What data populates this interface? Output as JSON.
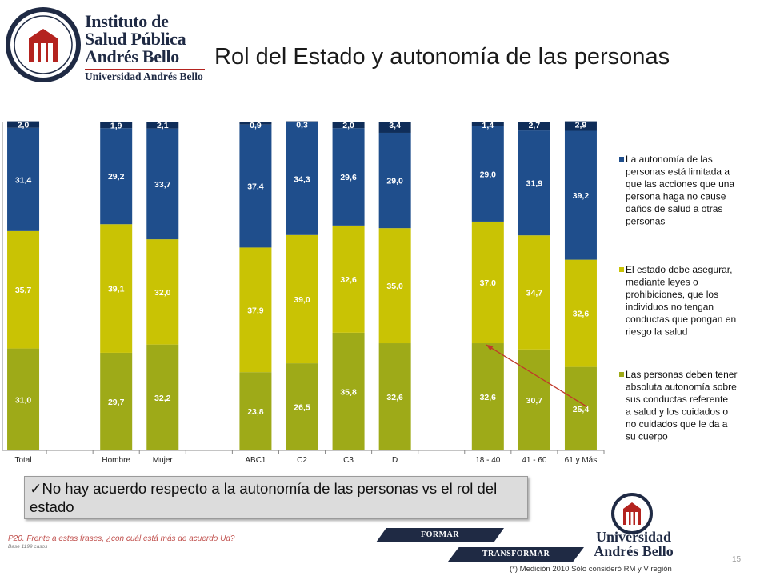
{
  "header": {
    "logo_lines": [
      "Instituto de",
      "Salud Pública",
      "Andrés Bello",
      "Universidad Andrés Bello"
    ],
    "title": "Rol del Estado y autonomía de las personas"
  },
  "chart_data": {
    "type": "bar",
    "stacked": true,
    "categories": [
      "Total",
      "",
      "Hombre",
      "Mujer",
      "",
      "ABC1",
      "C2",
      "C3",
      "D",
      "",
      "18 - 40",
      "41 - 60",
      "61 y Más"
    ],
    "series": [
      {
        "name": "Las personas deben tener absoluta autonomía sobre sus conductas referente a salud y los cuidados o no cuidados que le da a su cuerpo",
        "color": "#9eaa18",
        "values": [
          31.0,
          null,
          29.7,
          32.2,
          null,
          23.8,
          26.5,
          35.8,
          32.6,
          null,
          32.6,
          30.7,
          25.4
        ],
        "labels": [
          "31,0",
          "",
          "29,7",
          "32,2",
          "",
          "23,8",
          "26,5",
          "35,8",
          "32,6",
          "",
          "32,6",
          "30,7",
          "25,4"
        ]
      },
      {
        "name": "El estado debe asegurar, mediante leyes o prohibiciones, que los individuos no tengan conductas que pongan en riesgo la salud",
        "color": "#c9c304",
        "values": [
          35.7,
          null,
          39.1,
          32.0,
          null,
          37.9,
          39.0,
          32.6,
          35.0,
          null,
          37.0,
          34.7,
          32.6
        ],
        "labels": [
          "35,7",
          "",
          "39,1",
          "32,0",
          "",
          "37,9",
          "39,0",
          "32,6",
          "35,0",
          "",
          "37,0",
          "34,7",
          "32,6"
        ]
      },
      {
        "name": "La autonomía de las personas está limitada a que las acciones que una persona haga no cause daños de salud a otras personas",
        "color": "#1f4e8c",
        "values": [
          31.4,
          null,
          29.2,
          33.7,
          null,
          37.4,
          34.3,
          29.6,
          29.0,
          null,
          29.0,
          31.9,
          39.2
        ],
        "labels": [
          "31,4",
          "",
          "29,2",
          "33,7",
          "",
          "37,4",
          "34,3",
          "29,6",
          "29,0",
          "",
          "29,0",
          "31,9",
          "39,2"
        ]
      },
      {
        "name": "",
        "color": "#0f2d59",
        "values": [
          2.0,
          null,
          1.9,
          2.1,
          null,
          0.9,
          0.3,
          2.0,
          3.4,
          null,
          1.4,
          2.7,
          2.9
        ],
        "labels": [
          "2,0",
          "",
          "1,9",
          "2,1",
          "",
          "0,9",
          "0,3",
          "2,0",
          "3,4",
          "",
          "1,4",
          "2,7",
          "2,9"
        ]
      }
    ],
    "legend_order": [
      2,
      1,
      0
    ],
    "legend_position": "right",
    "ylim": [
      0,
      100
    ],
    "grid": false,
    "annotation": "red arrow from 61 y Más autonomy segment to 18 - 40 segment"
  },
  "callout": {
    "text": "No hay acuerdo respecto a la autonomía de las personas vs el rol del estado"
  },
  "footer": {
    "question": "P20. Frente a estas frases, ¿con cuál está más de acuerdo Ud?",
    "base": "Base 1199 casos",
    "ribbon_formar": "FORMAR",
    "ribbon_transformar": "TRANSFORMAR",
    "logo2_lines": [
      "Universidad",
      "Andrés Bello"
    ],
    "page_number": "15",
    "footnote": "(*) Medición 2010 Sólo consideró RM y V región"
  },
  "colors": {
    "accent_red": "#b4231f",
    "navy": "#1f2a44"
  }
}
